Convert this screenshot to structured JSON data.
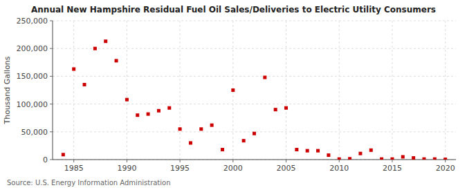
{
  "chart_data": {
    "type": "scatter",
    "title": "Annual New Hampshire Residual Fuel Oil Sales/Deliveries to Electric Utility Consumers",
    "ylabel": "Thousand Gallons",
    "source": "Source: U.S. Energy Information Administration",
    "x": [
      1984,
      1985,
      1986,
      1987,
      1988,
      1989,
      1990,
      1991,
      1992,
      1993,
      1994,
      1995,
      1996,
      1997,
      1998,
      1999,
      2000,
      2001,
      2002,
      2003,
      2004,
      2005,
      2006,
      2007,
      2008,
      2009,
      2010,
      2011,
      2012,
      2013,
      2014,
      2015,
      2016,
      2017,
      2018,
      2019,
      2020
    ],
    "values": [
      9000,
      163000,
      135000,
      200000,
      213000,
      178000,
      108000,
      80000,
      82000,
      88000,
      93000,
      55000,
      30000,
      55000,
      62000,
      18000,
      125000,
      34000,
      47000,
      148000,
      90000,
      93000,
      18000,
      16000,
      16000,
      8000,
      1000,
      1500,
      11000,
      17000,
      1000,
      1000,
      5000,
      3000,
      1000,
      1000,
      500
    ],
    "color": "#cc0000",
    "marker": "square",
    "grid": true,
    "xlim": [
      1983,
      2021
    ],
    "ylim": [
      0,
      250000
    ],
    "xticks": [
      1985,
      1990,
      1995,
      2000,
      2005,
      2010,
      2015,
      2020
    ],
    "yticks": [
      0,
      {
        "value": 50000,
        "label": "50,000"
      },
      {
        "value": 100000,
        "label": "100,000"
      },
      {
        "value": 150000,
        "label": "150,000"
      },
      {
        "value": 200000,
        "label": "200,000"
      },
      {
        "value": 250000,
        "label": "250,000"
      }
    ]
  }
}
